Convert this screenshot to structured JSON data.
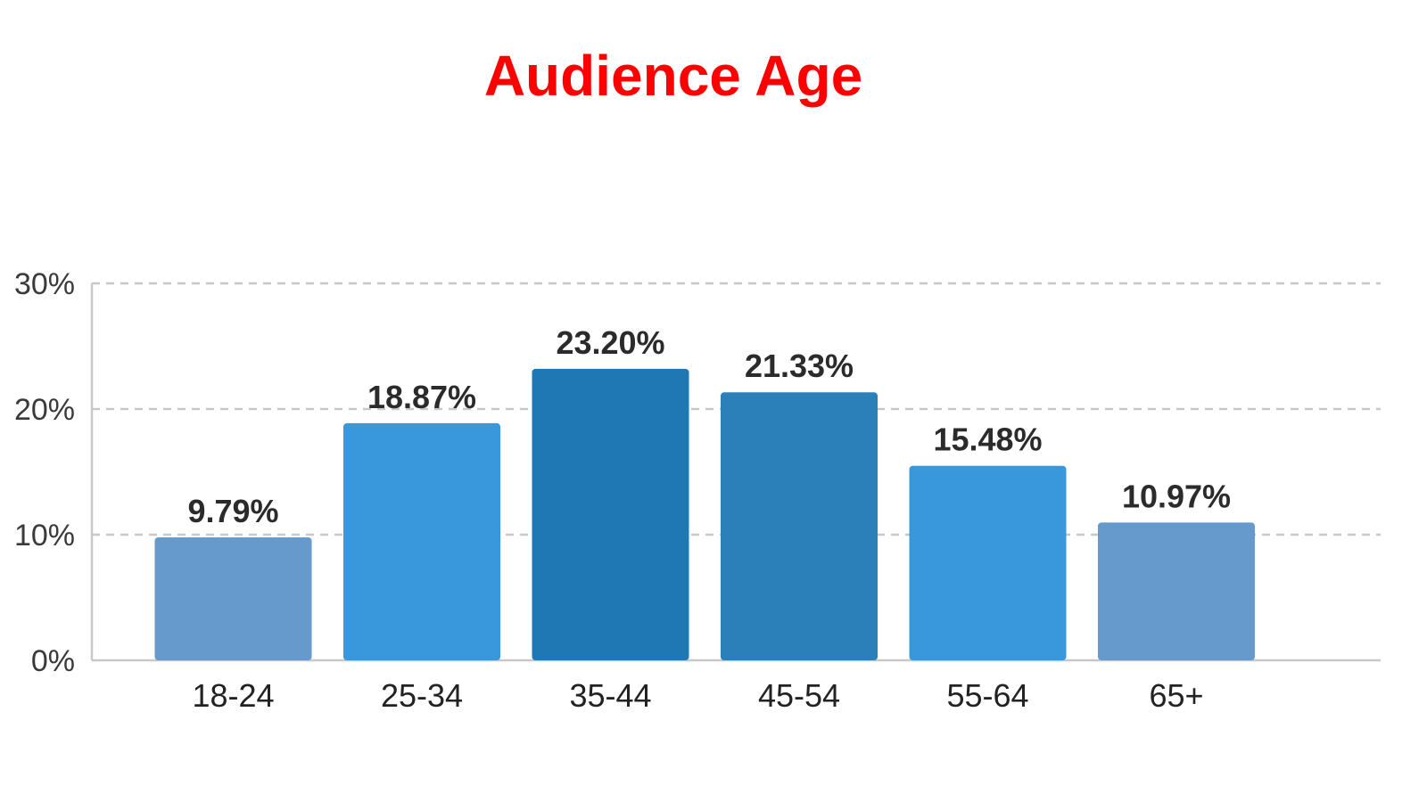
{
  "chart_data": {
    "type": "bar",
    "title": "Audience Age",
    "categories": [
      "18-24",
      "25-34",
      "35-44",
      "45-54",
      "55-64",
      "65+"
    ],
    "values": [
      9.79,
      18.87,
      23.2,
      21.33,
      15.48,
      10.97
    ],
    "data_labels": [
      "9.79%",
      "18.87%",
      "23.20%",
      "21.33%",
      "15.48%",
      "10.97%"
    ],
    "ylim": [
      0,
      30
    ],
    "yticks": [
      0,
      10,
      20,
      30
    ],
    "ytick_labels": [
      "0%",
      "10%",
      "20%",
      "30%"
    ],
    "xlabel": "",
    "ylabel": "",
    "grid": "horizontal-dashed",
    "legend": "none",
    "bar_colors": [
      "#6699cc",
      "#3898db",
      "#1f78b4",
      "#2c80b9",
      "#3898db",
      "#6699cc"
    ],
    "title_color": "#ff0000",
    "grid_color": "#c8c8c8",
    "axis_color": "#c8c8c8"
  }
}
